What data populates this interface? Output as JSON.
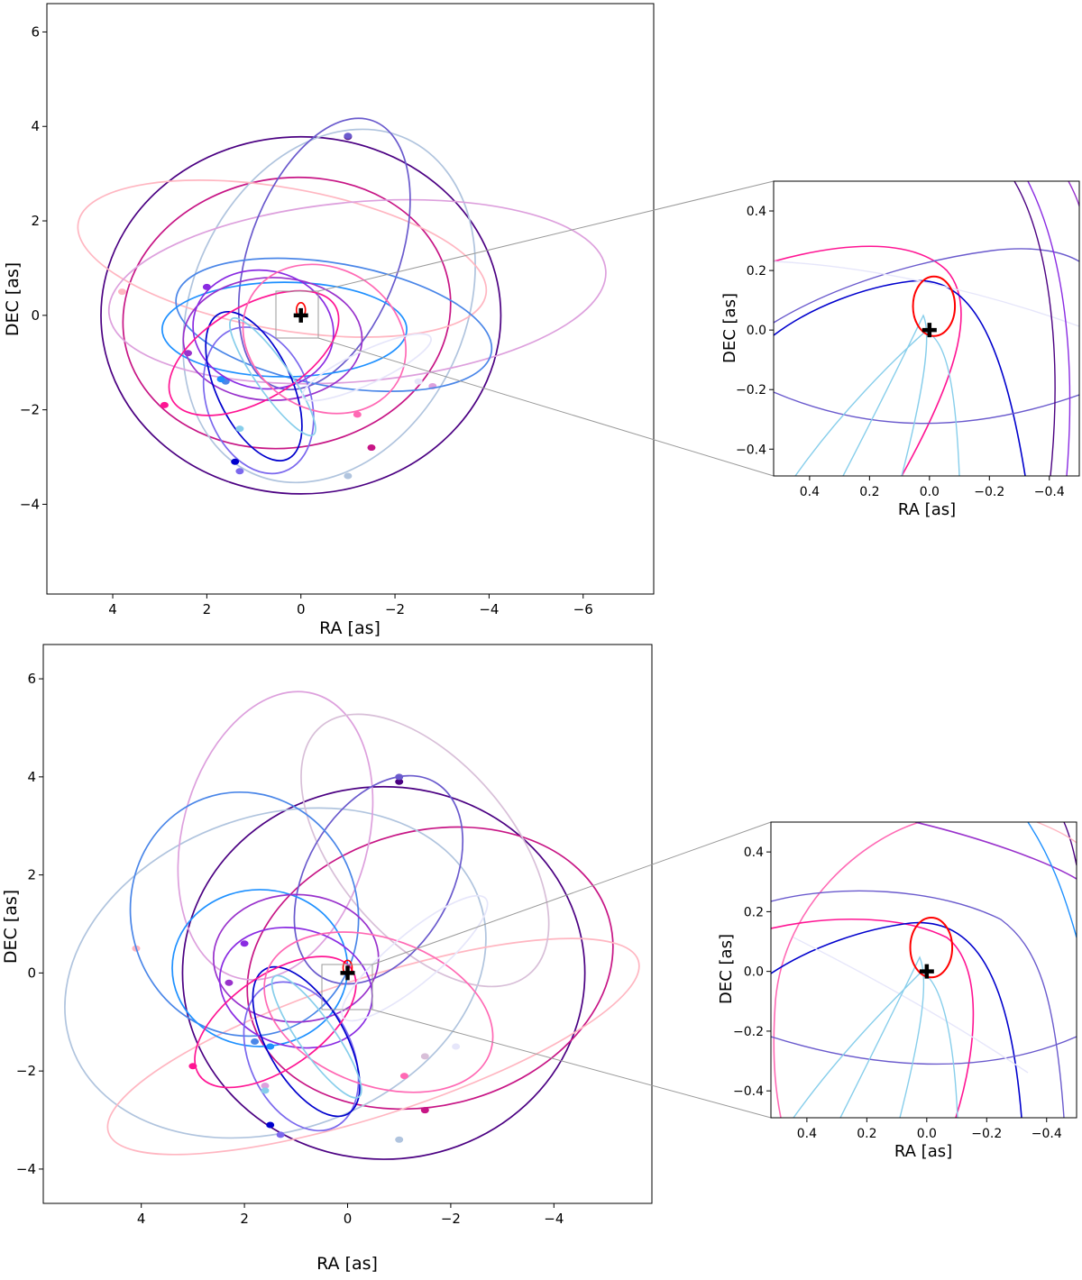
{
  "chart_data": [
    {
      "id": "top-main",
      "type": "line",
      "title": "",
      "xlabel": "RA [as]",
      "ylabel": "DEC [as]",
      "x_inverted": true,
      "xlim": [
        5.4,
        -7.5
      ],
      "ylim": [
        -5.9,
        6.6
      ],
      "xticks": [
        4,
        2,
        0,
        -2,
        -4,
        -6
      ],
      "xticklabels": [
        "4",
        "2",
        "0",
        "−2",
        "−4",
        "−6"
      ],
      "yticks": [
        6,
        4,
        2,
        0,
        -2,
        -4
      ],
      "yticklabels": [
        "6",
        "4",
        "2",
        "0",
        "−2",
        "−4"
      ],
      "grid": false,
      "central_marker": {
        "x": 0,
        "y": 0,
        "label": "+"
      },
      "orbits": [
        {
          "color": "#4b0082",
          "cx": 0,
          "cy": 0,
          "rx": 4.25,
          "ry": 3.78,
          "rot": 0,
          "marker": {
            "x": -1.0,
            "y": 3.78
          }
        },
        {
          "color": "#c71585",
          "cx": 0.3,
          "cy": 0.05,
          "rx": 3.5,
          "ry": 2.85,
          "rot": -10,
          "marker": {
            "x": -1.5,
            "y": -2.8
          }
        },
        {
          "color": "#b0c4de",
          "cx": -0.6,
          "cy": 0.2,
          "rx": 2.9,
          "ry": 3.9,
          "rot": 25,
          "marker": {
            "x": -1.0,
            "y": -3.4
          }
        },
        {
          "color": "#ffb6c1",
          "cx": 0.4,
          "cy": 1.2,
          "rx": 4.4,
          "ry": 1.5,
          "rot": 10,
          "marker": {
            "x": 3.8,
            "y": 0.5
          }
        },
        {
          "color": "#dda0dd",
          "cx": -1.2,
          "cy": 0.5,
          "rx": 5.3,
          "ry": 1.9,
          "rot": -5,
          "marker": {
            "x": -2.8,
            "y": -1.5
          }
        },
        {
          "color": "#6a5acd",
          "cx": -0.5,
          "cy": 1.3,
          "rx": 1.6,
          "ry": 3.0,
          "rot": 20,
          "marker": {
            "x": -1.0,
            "y": 3.8
          }
        },
        {
          "color": "#4a86e8",
          "cx": -0.7,
          "cy": -0.2,
          "rx": 3.4,
          "ry": 1.3,
          "rot": 10,
          "marker": {
            "x": 1.6,
            "y": -1.4
          }
        },
        {
          "color": "#1e90ff",
          "cx": 0.35,
          "cy": -0.3,
          "rx": 2.6,
          "ry": 1.0,
          "rot": 0,
          "marker": {
            "x": 1.7,
            "y": -1.35
          }
        },
        {
          "color": "#9932cc",
          "cx": 0.6,
          "cy": -0.5,
          "rx": 1.9,
          "ry": 1.3,
          "rot": 0,
          "marker": {
            "x": 2.4,
            "y": -0.8
          }
        },
        {
          "color": "#8a2be2",
          "cx": 0.8,
          "cy": -0.3,
          "rx": 1.5,
          "ry": 1.25,
          "rot": 10,
          "marker": {
            "x": 2.0,
            "y": 0.6
          }
        },
        {
          "color": "#7b68ee",
          "cx": 0.9,
          "cy": -1.8,
          "rx": 1.1,
          "ry": 1.6,
          "rot": -20,
          "marker": {
            "x": 1.3,
            "y": -3.3
          }
        },
        {
          "color": "#0000cd",
          "cx": 1.0,
          "cy": -1.5,
          "rx": 0.8,
          "ry": 1.7,
          "rot": -25,
          "marker": {
            "x": 1.4,
            "y": -3.1
          }
        },
        {
          "color": "#ff1493",
          "cx": 1.0,
          "cy": -0.8,
          "rx": 2.0,
          "ry": 1.0,
          "rot": -30,
          "marker": {
            "x": 2.9,
            "y": -1.9
          }
        },
        {
          "color": "#ff69b4",
          "cx": -0.5,
          "cy": -0.5,
          "rx": 1.8,
          "ry": 1.5,
          "rot": 30,
          "marker": {
            "x": -1.2,
            "y": -2.1
          }
        },
        {
          "color": "#87ceeb",
          "cx": 0.6,
          "cy": -1.3,
          "rx": 0.35,
          "ry": 1.5,
          "rot": -35,
          "marker": {
            "x": 1.3,
            "y": -2.4
          }
        },
        {
          "color": "#e6e6fa",
          "cx": -1.4,
          "cy": -1.1,
          "rx": 1.5,
          "ry": 0.35,
          "rot": -25,
          "marker": {
            "x": -2.5,
            "y": -1.4
          }
        }
      ]
    },
    {
      "id": "top-inset",
      "type": "line",
      "title": "",
      "xlabel": "RA [as]",
      "ylabel": "DEC [as]",
      "x_inverted": true,
      "xlim": [
        0.52,
        -0.5
      ],
      "ylim": [
        -0.49,
        0.5
      ],
      "xticks": [
        0.4,
        0.2,
        0.0,
        -0.2,
        -0.4
      ],
      "xticklabels": [
        "0.4",
        "0.2",
        "0.0",
        "−0.2",
        "−0.4"
      ],
      "yticks": [
        0.4,
        0.2,
        0.0,
        -0.2,
        -0.4
      ],
      "yticklabels": [
        "0.4",
        "0.2",
        "0.0",
        "−0.2",
        "−0.4"
      ],
      "grid": false,
      "central_marker": {
        "x": 0,
        "y": 0,
        "label": "+"
      },
      "highlight_orbit": {
        "color": "#ff0000",
        "cx": -0.015,
        "cy": 0.08,
        "rx": 0.07,
        "ry": 0.1
      }
    },
    {
      "id": "bottom-main",
      "type": "line",
      "title": "",
      "xlabel": "RA [as]",
      "ylabel": "DEC [as]",
      "x_inverted": true,
      "xlim": [
        5.9,
        -5.9
      ],
      "ylim": [
        -4.7,
        6.7
      ],
      "xticks": [
        4,
        2,
        0,
        -2,
        -4
      ],
      "xticklabels": [
        "4",
        "2",
        "0",
        "−2",
        "−4"
      ],
      "yticks": [
        6,
        4,
        2,
        0,
        -2,
        -4
      ],
      "yticklabels": [
        "6",
        "4",
        "2",
        "0",
        "−2",
        "−4"
      ],
      "grid": false,
      "central_marker": {
        "x": 0,
        "y": 0,
        "label": "+"
      },
      "orbits": [
        {
          "color": "#4b0082",
          "cx": -0.7,
          "cy": 0,
          "rx": 3.9,
          "ry": 3.8,
          "rot": 0,
          "marker": {
            "x": -1.0,
            "y": 3.9
          }
        },
        {
          "color": "#c71585",
          "cx": -1.6,
          "cy": 0.1,
          "rx": 3.6,
          "ry": 2.8,
          "rot": -15,
          "marker": {
            "x": -1.5,
            "y": -2.8
          }
        },
        {
          "color": "#b0c4de",
          "cx": 1.4,
          "cy": 0.0,
          "rx": 4.2,
          "ry": 3.2,
          "rot": -20,
          "marker": {
            "x": -1.0,
            "y": -3.4
          }
        },
        {
          "color": "#ffb6c1",
          "cx": -0.5,
          "cy": -1.5,
          "rx": 5.4,
          "ry": 1.4,
          "rot": -18,
          "marker": {
            "x": 4.1,
            "y": 0.5
          }
        },
        {
          "color": "#dda0dd",
          "cx": 1.4,
          "cy": 2.8,
          "rx": 1.8,
          "ry": 3.0,
          "rot": 15,
          "marker": {
            "x": 1.6,
            "y": -2.3
          }
        },
        {
          "color": "#d8bfd8",
          "cx": -1.5,
          "cy": 2.5,
          "rx": 1.7,
          "ry": 3.3,
          "rot": -40,
          "marker": {
            "x": -1.5,
            "y": -1.7
          }
        },
        {
          "color": "#6a5acd",
          "cx": -0.6,
          "cy": 1.9,
          "rx": 1.4,
          "ry": 2.3,
          "rot": 30,
          "marker": {
            "x": -1.0,
            "y": 4.0
          }
        },
        {
          "color": "#4a86e8",
          "cx": 2.0,
          "cy": 1.2,
          "rx": 2.2,
          "ry": 2.5,
          "rot": -15,
          "marker": {
            "x": 1.8,
            "y": -1.4
          }
        },
        {
          "color": "#1e90ff",
          "cx": 1.7,
          "cy": 0.1,
          "rx": 1.7,
          "ry": 1.6,
          "rot": 0,
          "marker": {
            "x": 1.5,
            "y": -1.5
          }
        },
        {
          "color": "#9932cc",
          "cx": 1.0,
          "cy": 0.3,
          "rx": 1.6,
          "ry": 1.3,
          "rot": 0,
          "marker": {
            "x": 2.3,
            "y": -0.2
          }
        },
        {
          "color": "#8a2be2",
          "cx": 1.0,
          "cy": -0.3,
          "rx": 1.5,
          "ry": 1.2,
          "rot": 15,
          "marker": {
            "x": 2.0,
            "y": 0.6
          }
        },
        {
          "color": "#7b68ee",
          "cx": 0.9,
          "cy": -1.7,
          "rx": 1.0,
          "ry": 1.6,
          "rot": -25,
          "marker": {
            "x": 1.3,
            "y": -3.3
          }
        },
        {
          "color": "#0000cd",
          "cx": 0.8,
          "cy": -1.4,
          "rx": 0.75,
          "ry": 1.7,
          "rot": -30,
          "marker": {
            "x": 1.5,
            "y": -3.1
          }
        },
        {
          "color": "#ff1493",
          "cx": 1.4,
          "cy": -1.0,
          "rx": 1.8,
          "ry": 0.95,
          "rot": -35,
          "marker": {
            "x": 3.0,
            "y": -1.9
          }
        },
        {
          "color": "#ff69b4",
          "cx": -0.6,
          "cy": -0.8,
          "rx": 2.3,
          "ry": 1.5,
          "rot": 20,
          "marker": {
            "x": -1.1,
            "y": -2.1
          }
        },
        {
          "color": "#87ceeb",
          "cx": 0.6,
          "cy": -1.3,
          "rx": 0.35,
          "ry": 1.5,
          "rot": -35,
          "marker": {
            "x": 1.6,
            "y": -2.4
          }
        },
        {
          "color": "#e6e6fa",
          "cx": -1.3,
          "cy": 0.3,
          "rx": 1.8,
          "ry": 0.5,
          "rot": -40,
          "marker": {
            "x": -2.1,
            "y": -1.5
          }
        }
      ]
    },
    {
      "id": "bottom-inset",
      "type": "line",
      "title": "",
      "xlabel": "RA [as]",
      "ylabel": "DEC [as]",
      "x_inverted": true,
      "xlim": [
        0.52,
        -0.5
      ],
      "ylim": [
        -0.49,
        0.5
      ],
      "xticks": [
        0.4,
        0.2,
        0.0,
        -0.2,
        -0.4
      ],
      "xticklabels": [
        "0.4",
        "0.2",
        "0.0",
        "−0.2",
        "−0.4"
      ],
      "yticks": [
        0.4,
        0.2,
        0.0,
        -0.2,
        -0.4
      ],
      "yticklabels": [
        "0.4",
        "0.2",
        "0.0",
        "−0.2",
        "−0.4"
      ],
      "grid": false,
      "central_marker": {
        "x": 0,
        "y": 0,
        "label": "+"
      },
      "highlight_orbit": {
        "color": "#ff0000",
        "cx": -0.015,
        "cy": 0.08,
        "rx": 0.07,
        "ry": 0.1
      }
    }
  ]
}
